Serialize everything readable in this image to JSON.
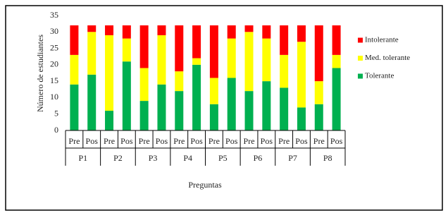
{
  "chart_data": {
    "type": "stacked-bar",
    "y_label": "Número de estudiantes",
    "x_label": "Preguntas",
    "groups": [
      "P1",
      "P2",
      "P3",
      "P4",
      "P5",
      "P6",
      "P7",
      "P8"
    ],
    "categories": [
      "Pre",
      "Pos",
      "Pre",
      "Pos",
      "Pre",
      "Pos",
      "Pre",
      "Pos",
      "Pre",
      "Pos",
      "Pre",
      "Pos",
      "Pre",
      "Pos",
      "Pre",
      "Pos"
    ],
    "series": [
      {
        "name": "Tolerante",
        "color": "#00b050",
        "values": [
          14,
          17,
          6,
          21,
          9,
          14,
          12,
          20,
          8,
          16,
          12,
          15,
          13,
          7,
          8,
          19
        ]
      },
      {
        "name": "Med. tolerante",
        "color": "#ffff00",
        "values": [
          9,
          13,
          23,
          7,
          10,
          15,
          6,
          2,
          8,
          12,
          18,
          13,
          10,
          20,
          7,
          4
        ]
      },
      {
        "name": "Intolerante",
        "color": "#ff0000",
        "values": [
          9,
          2,
          3,
          4,
          13,
          3,
          14,
          10,
          16,
          4,
          2,
          4,
          9,
          5,
          17,
          9
        ]
      }
    ],
    "ylim": [
      0,
      35
    ],
    "yticks": [
      0,
      5,
      10,
      15,
      20,
      25,
      30,
      35
    ]
  }
}
